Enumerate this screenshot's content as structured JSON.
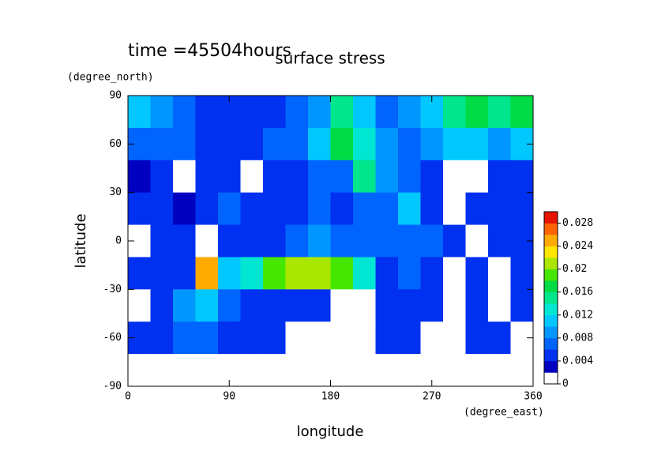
{
  "chart_data": {
    "type": "heatmap",
    "title": "surface stress",
    "subtitle": "time =45504hours",
    "xlabel": "longitude",
    "xunit": "(degree_east)",
    "ylabel": "latitude",
    "yunit": "(degree_north)",
    "xlim": [
      0,
      360
    ],
    "xticks": [
      0,
      90,
      180,
      270,
      360
    ],
    "ylim": [
      -90,
      90
    ],
    "yticks": [
      -90,
      -60,
      -30,
      0,
      30,
      60,
      90
    ],
    "x": [
      10,
      30,
      50,
      70,
      90,
      110,
      130,
      150,
      170,
      190,
      210,
      230,
      250,
      270,
      290,
      310,
      330,
      350
    ],
    "y": [
      80,
      60,
      40,
      20,
      0,
      -20,
      -40,
      -60,
      -80
    ],
    "z": [
      [
        0.01,
        0.008,
        0.006,
        0.004,
        0.004,
        0.004,
        0.004,
        0.006,
        0.008,
        0.014,
        0.01,
        0.006,
        0.008,
        0.01,
        0.014,
        0.016,
        0.014,
        0.016
      ],
      [
        0.006,
        0.006,
        0.006,
        0.004,
        0.004,
        0.004,
        0.006,
        0.006,
        0.01,
        0.016,
        0.012,
        0.008,
        0.006,
        0.008,
        0.01,
        0.01,
        0.008,
        0.01
      ],
      [
        0.002,
        0.004,
        0.001,
        0.004,
        0.004,
        0.001,
        0.004,
        0.004,
        0.006,
        0.006,
        0.014,
        0.008,
        0.006,
        0.004,
        0.001,
        0.001,
        0.004,
        0.004
      ],
      [
        0.004,
        0.004,
        0.003,
        0.004,
        0.006,
        0.004,
        0.004,
        0.004,
        0.006,
        0.004,
        0.006,
        0.006,
        0.01,
        0.004,
        0.001,
        0.004,
        0.004,
        0.004
      ],
      [
        0.001,
        0.004,
        0.004,
        0.001,
        0.004,
        0.004,
        0.004,
        0.006,
        0.008,
        0.006,
        0.006,
        0.006,
        0.006,
        0.006,
        0.004,
        0.001,
        0.004,
        0.004
      ],
      [
        0.004,
        0.004,
        0.004,
        0.024,
        0.01,
        0.012,
        0.018,
        0.02,
        0.02,
        0.018,
        0.012,
        0.004,
        0.006,
        0.004,
        0.001,
        0.004,
        0.001,
        0.004
      ],
      [
        0.001,
        0.004,
        0.008,
        0.01,
        0.006,
        0.004,
        0.004,
        0.004,
        0.004,
        0.001,
        0.001,
        0.004,
        0.004,
        0.004,
        0.001,
        0.004,
        0.001,
        0.004
      ],
      [
        0.004,
        0.004,
        0.006,
        0.006,
        0.004,
        0.004,
        0.004,
        0.001,
        0.001,
        0.001,
        0.001,
        0.004,
        0.004,
        0.001,
        0.001,
        0.004,
        0.004,
        0.001
      ],
      [
        0,
        0,
        0,
        0,
        0,
        0,
        0,
        0,
        0,
        0,
        0,
        0,
        0,
        0,
        0,
        0,
        0,
        0
      ]
    ],
    "zlim": [
      0,
      0.03
    ],
    "zticks": [
      0,
      0.004,
      0.008,
      0.012,
      0.016,
      0.02,
      0.024,
      0.028
    ],
    "colors": [
      "#ffffff",
      "#0000c0",
      "#0030f0",
      "#0064ff",
      "#0096ff",
      "#00c8ff",
      "#00e6d2",
      "#00e68c",
      "#00dc46",
      "#46e600",
      "#aae600",
      "#ffe600",
      "#ffaa00",
      "#ff6400",
      "#e61400"
    ]
  }
}
